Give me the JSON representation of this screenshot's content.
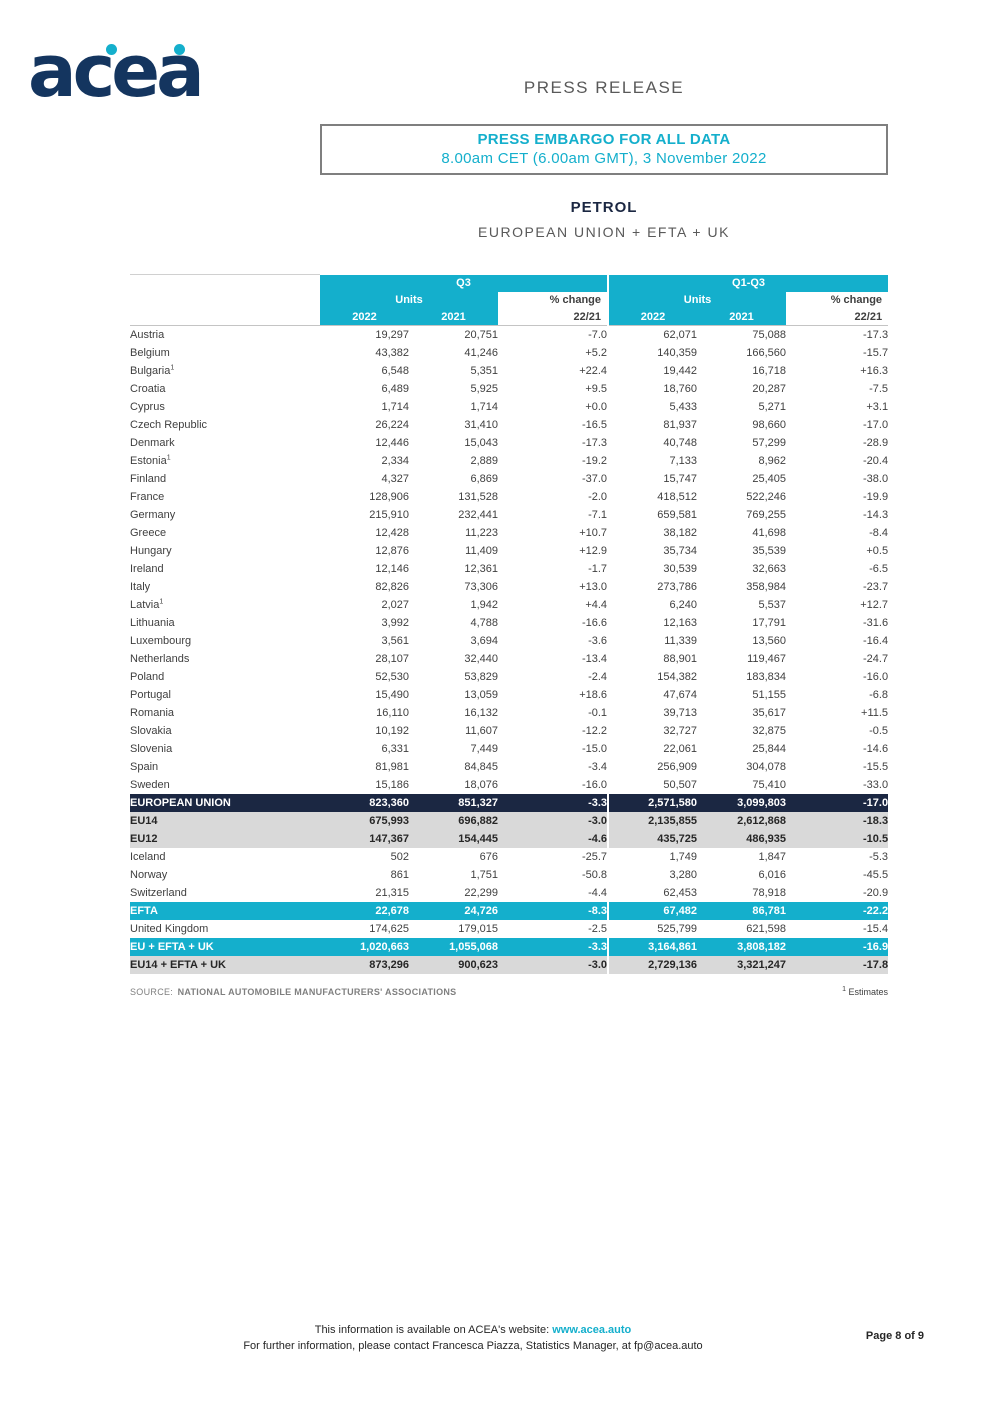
{
  "colors": {
    "cyan": "#14AFCC",
    "navy": "#1B2742",
    "gray_row": "#D9D9D9"
  },
  "header": {
    "logo_text": "acea",
    "press_release": "PRESS RELEASE"
  },
  "embargo": {
    "title": "PRESS EMBARGO FOR ALL DATA",
    "datetime": "8.00am CET (6.00am GMT), 3 November 2022"
  },
  "doc": {
    "title": "PETROL",
    "subtitle": "EUROPEAN UNION + EFTA + UK"
  },
  "table": {
    "group_q3": "Q3",
    "group_q13": "Q1-Q3",
    "units_label": "Units",
    "pct_change_label": "% change",
    "year_2022": "2022",
    "year_2021": "2021",
    "ratio_label": "22/21",
    "rows": [
      {
        "label": "Austria",
        "type": "plain",
        "values": [
          "19,297",
          "20,751",
          "-7.0",
          "62,071",
          "75,088",
          "-17.3"
        ]
      },
      {
        "label": "Belgium",
        "type": "plain",
        "values": [
          "43,382",
          "41,246",
          "+5.2",
          "140,359",
          "166,560",
          "-15.7"
        ]
      },
      {
        "label": "Bulgaria",
        "sup": "1",
        "type": "plain",
        "values": [
          "6,548",
          "5,351",
          "+22.4",
          "19,442",
          "16,718",
          "+16.3"
        ]
      },
      {
        "label": "Croatia",
        "type": "plain",
        "values": [
          "6,489",
          "5,925",
          "+9.5",
          "18,760",
          "20,287",
          "-7.5"
        ]
      },
      {
        "label": "Cyprus",
        "type": "plain",
        "values": [
          "1,714",
          "1,714",
          "+0.0",
          "5,433",
          "5,271",
          "+3.1"
        ]
      },
      {
        "label": "Czech Republic",
        "type": "plain",
        "values": [
          "26,224",
          "31,410",
          "-16.5",
          "81,937",
          "98,660",
          "-17.0"
        ]
      },
      {
        "label": "Denmark",
        "type": "plain",
        "values": [
          "12,446",
          "15,043",
          "-17.3",
          "40,748",
          "57,299",
          "-28.9"
        ]
      },
      {
        "label": "Estonia",
        "sup": "1",
        "type": "plain",
        "values": [
          "2,334",
          "2,889",
          "-19.2",
          "7,133",
          "8,962",
          "-20.4"
        ]
      },
      {
        "label": "Finland",
        "type": "plain",
        "values": [
          "4,327",
          "6,869",
          "-37.0",
          "15,747",
          "25,405",
          "-38.0"
        ]
      },
      {
        "label": "France",
        "type": "plain",
        "values": [
          "128,906",
          "131,528",
          "-2.0",
          "418,512",
          "522,246",
          "-19.9"
        ]
      },
      {
        "label": "Germany",
        "type": "plain",
        "values": [
          "215,910",
          "232,441",
          "-7.1",
          "659,581",
          "769,255",
          "-14.3"
        ]
      },
      {
        "label": "Greece",
        "type": "plain",
        "values": [
          "12,428",
          "11,223",
          "+10.7",
          "38,182",
          "41,698",
          "-8.4"
        ]
      },
      {
        "label": "Hungary",
        "type": "plain",
        "values": [
          "12,876",
          "11,409",
          "+12.9",
          "35,734",
          "35,539",
          "+0.5"
        ]
      },
      {
        "label": "Ireland",
        "type": "plain",
        "values": [
          "12,146",
          "12,361",
          "-1.7",
          "30,539",
          "32,663",
          "-6.5"
        ]
      },
      {
        "label": "Italy",
        "type": "plain",
        "values": [
          "82,826",
          "73,306",
          "+13.0",
          "273,786",
          "358,984",
          "-23.7"
        ]
      },
      {
        "label": "Latvia",
        "sup": "1",
        "type": "plain",
        "values": [
          "2,027",
          "1,942",
          "+4.4",
          "6,240",
          "5,537",
          "+12.7"
        ]
      },
      {
        "label": "Lithuania",
        "type": "plain",
        "values": [
          "3,992",
          "4,788",
          "-16.6",
          "12,163",
          "17,791",
          "-31.6"
        ]
      },
      {
        "label": "Luxembourg",
        "type": "plain",
        "values": [
          "3,561",
          "3,694",
          "-3.6",
          "11,339",
          "13,560",
          "-16.4"
        ]
      },
      {
        "label": "Netherlands",
        "type": "plain",
        "values": [
          "28,107",
          "32,440",
          "-13.4",
          "88,901",
          "119,467",
          "-24.7"
        ]
      },
      {
        "label": "Poland",
        "type": "plain",
        "values": [
          "52,530",
          "53,829",
          "-2.4",
          "154,382",
          "183,834",
          "-16.0"
        ]
      },
      {
        "label": "Portugal",
        "type": "plain",
        "values": [
          "15,490",
          "13,059",
          "+18.6",
          "47,674",
          "51,155",
          "-6.8"
        ]
      },
      {
        "label": "Romania",
        "type": "plain",
        "values": [
          "16,110",
          "16,132",
          "-0.1",
          "39,713",
          "35,617",
          "+11.5"
        ]
      },
      {
        "label": "Slovakia",
        "type": "plain",
        "values": [
          "10,192",
          "11,607",
          "-12.2",
          "32,727",
          "32,875",
          "-0.5"
        ]
      },
      {
        "label": "Slovenia",
        "type": "plain",
        "values": [
          "6,331",
          "7,449",
          "-15.0",
          "22,061",
          "25,844",
          "-14.6"
        ]
      },
      {
        "label": "Spain",
        "type": "plain",
        "values": [
          "81,981",
          "84,845",
          "-3.4",
          "256,909",
          "304,078",
          "-15.5"
        ]
      },
      {
        "label": "Sweden",
        "type": "plain",
        "values": [
          "15,186",
          "18,076",
          "-16.0",
          "50,507",
          "75,410",
          "-33.0"
        ]
      },
      {
        "label": "EUROPEAN UNION",
        "type": "dark",
        "values": [
          "823,360",
          "851,327",
          "-3.3",
          "2,571,580",
          "3,099,803",
          "-17.0"
        ]
      },
      {
        "label": "EU14",
        "type": "gray",
        "values": [
          "675,993",
          "696,882",
          "-3.0",
          "2,135,855",
          "2,612,868",
          "-18.3"
        ]
      },
      {
        "label": "EU12",
        "type": "gray",
        "values": [
          "147,367",
          "154,445",
          "-4.6",
          "435,725",
          "486,935",
          "-10.5"
        ]
      },
      {
        "label": "Iceland",
        "type": "plain",
        "values": [
          "502",
          "676",
          "-25.7",
          "1,749",
          "1,847",
          "-5.3"
        ]
      },
      {
        "label": "Norway",
        "type": "plain",
        "values": [
          "861",
          "1,751",
          "-50.8",
          "3,280",
          "6,016",
          "-45.5"
        ]
      },
      {
        "label": "Switzerland",
        "type": "plain",
        "values": [
          "21,315",
          "22,299",
          "-4.4",
          "62,453",
          "78,918",
          "-20.9"
        ]
      },
      {
        "label": "EFTA",
        "type": "cyan",
        "values": [
          "22,678",
          "24,726",
          "-8.3",
          "67,482",
          "86,781",
          "-22.2"
        ]
      },
      {
        "label": "United Kingdom",
        "type": "plain",
        "values": [
          "174,625",
          "179,015",
          "-2.5",
          "525,799",
          "621,598",
          "-15.4"
        ]
      },
      {
        "label": "EU + EFTA + UK",
        "type": "cyan",
        "values": [
          "1,020,663",
          "1,055,068",
          "-3.3",
          "3,164,861",
          "3,808,182",
          "-16.9"
        ]
      },
      {
        "label": "EU14 + EFTA + UK",
        "type": "gray",
        "values": [
          "873,296",
          "900,623",
          "-3.0",
          "2,729,136",
          "3,321,247",
          "-17.8"
        ]
      }
    ]
  },
  "source": {
    "prefix": "SOURCE:",
    "name": "NATIONAL AUTOMOBILE MANUFACTURERS' ASSOCIATIONS",
    "footnote_sup": "1",
    "footnote_text": "Estimates"
  },
  "footer": {
    "line1_prefix": "This information is available on ACEA's website:",
    "website": "www.acea.auto",
    "line2_prefix": "For further information, please contact Francesca Piazza, Statistics Manager, at",
    "email": "fp@acea.auto",
    "page_label": "Page 8 of 9"
  }
}
